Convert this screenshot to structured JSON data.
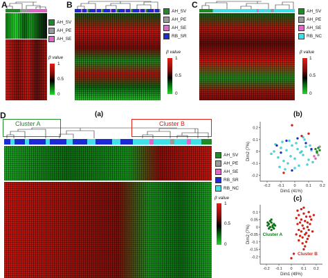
{
  "figure": {
    "panels": {
      "A": {
        "letter": "A",
        "legend": [
          "AH_SV",
          "AH_PE",
          "AH_SE"
        ],
        "scale": {
          "title": "β value",
          "ticks": [
            "1",
            "0.5",
            "0"
          ]
        }
      },
      "B": {
        "letter": "B",
        "legend": [
          "AH_SV",
          "AH_PE",
          "AH_SE",
          "RB_SR"
        ],
        "scale": {
          "title": "β value",
          "ticks": [
            "1",
            "0.5",
            "0"
          ]
        }
      },
      "C": {
        "letter": "C",
        "legend": [
          "AH_SV",
          "AH_PE",
          "AH_SE",
          "RB_NC"
        ],
        "scale": {
          "title": "β value",
          "ticks": [
            "1",
            "0.5",
            "0"
          ]
        }
      },
      "D": {
        "letter": "D",
        "sub_a": "(a)",
        "sub_b": "(b)",
        "sub_c": "(c)",
        "cluster_a_label": "Cluster A",
        "cluster_b_label": "Cluster B",
        "legend": [
          "AH_SV",
          "AH_PE",
          "AH_SE",
          "RB_SR",
          "RB_NC"
        ],
        "scale": {
          "title": "β value",
          "ticks": [
            "1",
            "0.5",
            "0"
          ]
        }
      }
    },
    "group_colors": {
      "AH_SV": "#1f8b25",
      "AH_PE": "#9a9a9a",
      "AH_SE": "#e066c8",
      "RB_SR": "#1a2bd6",
      "RB_NC": "#3fe0e8"
    }
  },
  "chart_data": [
    {
      "id": "pca-b",
      "type": "scatter",
      "xlabel": "Dim1 (41%)",
      "ylabel": "Dim2 (7%)",
      "xlim": [
        -0.25,
        0.2
      ],
      "ylim": [
        -0.25,
        0.25
      ],
      "xticks": [
        "-0.2",
        "-0.1",
        "0",
        "0.1",
        "0.2"
      ],
      "yticks": [
        "0.2",
        "0.1",
        "0",
        "-0.1",
        "-0.2"
      ],
      "series": [
        {
          "color": "#3fe0e8",
          "x": [
            -0.17,
            -0.15,
            -0.12,
            -0.1,
            -0.08,
            -0.06,
            -0.05,
            -0.03,
            -0.02,
            0.0,
            0.02,
            0.03,
            0.05,
            0.06,
            0.08,
            0.1,
            0.12,
            0.13,
            -0.14,
            -0.09,
            -0.04,
            0.01,
            0.04,
            0.07,
            0.09,
            0.11,
            -0.11,
            -0.07,
            0.0,
            0.06
          ],
          "y": [
            -0.02,
            0.0,
            -0.05,
            0.03,
            -0.08,
            0.01,
            -0.1,
            -0.04,
            0.05,
            -0.06,
            0.02,
            -0.12,
            0.0,
            -0.03,
            0.04,
            -0.07,
            0.01,
            -0.09,
            0.06,
            0.08,
            0.09,
            0.07,
            -0.01,
            0.1,
            -0.11,
            0.05,
            -0.13,
            -0.15,
            -0.14,
            0.12
          ]
        },
        {
          "color": "#1a2bd6",
          "x": [
            -0.13,
            -0.1,
            -0.06,
            0.02,
            0.08,
            -0.02,
            0.12
          ],
          "y": [
            0.05,
            -0.01,
            0.09,
            0.11,
            0.07,
            -0.16,
            0.02
          ]
        },
        {
          "color": "#e21d14",
          "x": [
            -0.02,
            0.05,
            -0.08,
            0.1
          ],
          "y": [
            0.22,
            0.13,
            -0.18,
            0.15
          ]
        },
        {
          "color": "#1f8b25",
          "x": [
            0.15,
            0.16,
            0.17,
            0.18,
            0.16
          ],
          "y": [
            0.02,
            0.0,
            0.03,
            0.01,
            -0.01
          ]
        },
        {
          "color": "#e066c8",
          "x": [
            0.14,
            0.15
          ],
          "y": [
            -0.04,
            -0.06
          ]
        },
        {
          "color": "#9a9a9a",
          "x": [
            0.17,
            0.18
          ],
          "y": [
            -0.03,
            0.04
          ]
        }
      ]
    },
    {
      "id": "pca-c",
      "type": "scatter",
      "xlabel": "Dim1 (49%)",
      "ylabel": "Dim2 (7%)",
      "xlim": [
        -0.25,
        0.25
      ],
      "ylim": [
        -0.25,
        0.15
      ],
      "xticks": [
        "-0.2",
        "-0.1",
        "0",
        "0.1",
        "0.2"
      ],
      "yticks": [
        "0.1",
        "0.05",
        "0",
        "-0.05",
        "-0.1",
        "-0.15",
        "-0.2"
      ],
      "annotations": [
        "Cluster A",
        "Cluster B"
      ],
      "series": [
        {
          "name": "Cluster A",
          "color": "#0b7a14",
          "x": [
            -0.19,
            -0.18,
            -0.17,
            -0.16,
            -0.15,
            -0.14,
            -0.18,
            -0.16,
            -0.15,
            -0.13,
            -0.17,
            -0.14,
            -0.19,
            -0.16
          ],
          "y": [
            0.01,
            0.02,
            0.0,
            0.03,
            0.01,
            0.02,
            -0.01,
            -0.02,
            0.0,
            0.01,
            0.04,
            -0.01,
            0.03,
            0.05
          ]
        },
        {
          "name": "Cluster B",
          "color": "#e21d14",
          "x": [
            0.04,
            0.06,
            0.08,
            0.1,
            0.12,
            0.14,
            0.05,
            0.07,
            0.09,
            0.11,
            0.13,
            0.15,
            0.06,
            0.08,
            0.1,
            0.12,
            0.14,
            0.16,
            0.07,
            0.09,
            0.11,
            0.13,
            0.05,
            0.08,
            0.1,
            0.12,
            0.15,
            0.17,
            0.09,
            0.11,
            0.06,
            0.13,
            0.18,
            0.04,
            0.1,
            0.02,
            0.0,
            0.14
          ],
          "y": [
            0.06,
            0.08,
            0.05,
            0.09,
            0.07,
            0.1,
            0.02,
            0.03,
            0.01,
            0.04,
            0.0,
            0.02,
            -0.02,
            -0.03,
            -0.01,
            -0.04,
            -0.02,
            0.05,
            -0.06,
            -0.07,
            -0.05,
            -0.08,
            0.11,
            0.12,
            0.13,
            -0.1,
            0.07,
            -0.03,
            -0.11,
            -0.13,
            -0.09,
            0.03,
            0.08,
            -0.05,
            -0.15,
            -0.18,
            -0.21,
            -0.06
          ]
        }
      ]
    }
  ]
}
